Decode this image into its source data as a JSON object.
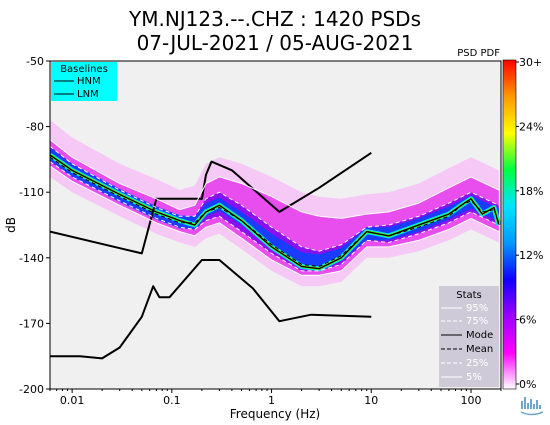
{
  "chart_data": {
    "type": "heatmap",
    "title": "YM.NJ123.--.CHZ : 1420 PSDs",
    "subtitle": "07-JUL-2021 / 05-AUG-2021",
    "xlabel": "Frequency (Hz)",
    "ylabel": "dB",
    "xscale": "log",
    "xlim": [
      0.006,
      200
    ],
    "ylim": [
      -200,
      -50
    ],
    "xticks": [
      {
        "value": 0.01,
        "label": "0.01"
      },
      {
        "value": 0.1,
        "label": "0.1"
      },
      {
        "value": 1,
        "label": "1"
      },
      {
        "value": 10,
        "label": "10"
      },
      {
        "value": 100,
        "label": "100"
      }
    ],
    "yticks": [
      {
        "value": -50,
        "label": "-50"
      },
      {
        "value": -80,
        "label": "-80"
      },
      {
        "value": -110,
        "label": "-110"
      },
      {
        "value": -140,
        "label": "-140"
      },
      {
        "value": -170,
        "label": "-170"
      },
      {
        "value": -200,
        "label": "-200"
      }
    ],
    "colorbar": {
      "title": "PSD PDF",
      "ticks": [
        "30+",
        "24%",
        "18%",
        "12%",
        "6%",
        "0%"
      ],
      "colors": [
        "#ffffff",
        "#ff00ff",
        "#9d00ff",
        "#1000ff",
        "#0099ff",
        "#00e5ff",
        "#00ff40",
        "#ffff00",
        "#ff9900",
        "#ff0000"
      ]
    },
    "baselines_legend": {
      "title": "Baselines",
      "items": [
        "HNM",
        "LNM"
      ],
      "position": "top-left"
    },
    "stats_legend": {
      "title": "Stats",
      "items": [
        "95%",
        "75%",
        "Mode",
        "Mean",
        "25%",
        "5%"
      ],
      "position": "bottom-right"
    },
    "series": [
      {
        "name": "HNM",
        "x": [
          0.006,
          0.05,
          0.07,
          0.2,
          0.22,
          0.25,
          0.4,
          1.2,
          3,
          10
        ],
        "y": [
          -128,
          -138,
          -113,
          -113,
          -102,
          -96,
          -100,
          -119,
          -108,
          -92
        ]
      },
      {
        "name": "LNM",
        "x": [
          0.006,
          0.012,
          0.02,
          0.03,
          0.05,
          0.065,
          0.075,
          0.095,
          0.2,
          0.3,
          0.65,
          1.2,
          2.5,
          10
        ],
        "y": [
          -185,
          -185,
          -186,
          -181,
          -167,
          -153,
          -158,
          -158,
          -141,
          -141,
          -154,
          -169,
          -166,
          -167
        ]
      },
      {
        "name": "Mode",
        "x": [
          0.006,
          0.01,
          0.03,
          0.07,
          0.12,
          0.17,
          0.22,
          0.3,
          0.5,
          1,
          2,
          3,
          5,
          9,
          15,
          30,
          60,
          80,
          100,
          130,
          170,
          190
        ],
        "y": [
          -93,
          -100,
          -111,
          -119,
          -123,
          -125,
          -119,
          -116,
          -123,
          -135,
          -144,
          -145,
          -140,
          -128,
          -130,
          -125,
          -120,
          -116,
          -113,
          -120,
          -117,
          -125
        ]
      },
      {
        "name": "Mean",
        "x": [
          0.006,
          0.01,
          0.03,
          0.07,
          0.12,
          0.17,
          0.22,
          0.3,
          0.5,
          1,
          2,
          3,
          5,
          9,
          15,
          30,
          60,
          80,
          100,
          130,
          170,
          190
        ],
        "y": [
          -94,
          -101,
          -112,
          -120,
          -124,
          -124,
          -119,
          -117,
          -123,
          -134,
          -143,
          -144,
          -139,
          -128,
          -130,
          -126,
          -121,
          -116,
          -114,
          -119,
          -118,
          -124
        ]
      },
      {
        "name": "95%",
        "x": [
          0.006,
          0.01,
          0.03,
          0.07,
          0.12,
          0.17,
          0.22,
          0.3,
          0.5,
          1,
          2,
          3,
          5,
          9,
          15,
          30,
          60,
          100,
          190
        ],
        "y": [
          -86,
          -94,
          -106,
          -113,
          -118,
          -116,
          -106,
          -103,
          -106,
          -112,
          -119,
          -121,
          -122,
          -120,
          -119,
          -115,
          -108,
          -103,
          -109
        ]
      },
      {
        "name": "75%",
        "x": [
          0.006,
          0.01,
          0.03,
          0.07,
          0.12,
          0.17,
          0.22,
          0.3,
          0.5,
          1,
          2,
          3,
          5,
          9,
          15,
          30,
          60,
          100,
          190
        ],
        "y": [
          -89,
          -97,
          -109,
          -117,
          -121,
          -121,
          -113,
          -110,
          -116,
          -126,
          -135,
          -137,
          -134,
          -126,
          -125,
          -121,
          -115,
          -110,
          -116
        ]
      },
      {
        "name": "25%",
        "x": [
          0.006,
          0.01,
          0.03,
          0.07,
          0.12,
          0.17,
          0.22,
          0.3,
          0.5,
          1,
          2,
          3,
          5,
          9,
          15,
          30,
          60,
          100,
          190
        ],
        "y": [
          -96,
          -103,
          -114,
          -122,
          -126,
          -127,
          -123,
          -121,
          -128,
          -138,
          -146,
          -146,
          -143,
          -132,
          -133,
          -129,
          -124,
          -119,
          -125
        ]
      },
      {
        "name": "5%",
        "x": [
          0.006,
          0.01,
          0.03,
          0.07,
          0.12,
          0.17,
          0.22,
          0.3,
          0.5,
          1,
          2,
          3,
          5,
          9,
          15,
          30,
          60,
          100,
          190
        ],
        "y": [
          -98,
          -105,
          -116,
          -124,
          -128,
          -130,
          -126,
          -124,
          -131,
          -141,
          -148,
          -148,
          -146,
          -135,
          -135,
          -132,
          -127,
          -122,
          -128
        ]
      }
    ]
  }
}
